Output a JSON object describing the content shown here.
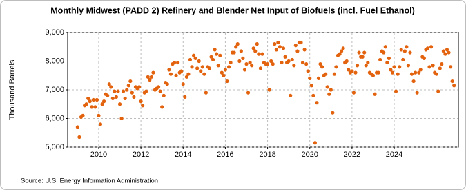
{
  "chart_data": {
    "type": "scatter",
    "title": "Monthly Midwest (PADD 2) Refinery and Blender Net Input of Biofuels (incl. Fuel Ethanol)",
    "y_label": "Thousand Barrels",
    "source": "Source: U.S. Energy Information Administration",
    "color": "#e2620e",
    "grid": true,
    "xlim": [
      2008.53,
      2027.04
    ],
    "xticks": [
      2010,
      2012,
      2014,
      2016,
      2018,
      2020,
      2022,
      2024
    ],
    "ylim": [
      5000,
      9000
    ],
    "yticks": [
      {
        "value": 5000,
        "label": "5,000"
      },
      {
        "value": 6000,
        "label": "6,000"
      },
      {
        "value": 7000,
        "label": "7,000"
      },
      {
        "value": 8000,
        "label": "8,000"
      },
      {
        "value": 9000,
        "label": "9,000"
      }
    ],
    "x": [
      2009,
      2009.083,
      2009.167,
      2009.25,
      2009.333,
      2009.417,
      2009.5,
      2009.583,
      2009.667,
      2009.75,
      2009.833,
      2009.917,
      2010,
      2010.083,
      2010.167,
      2010.25,
      2010.333,
      2010.417,
      2010.5,
      2010.583,
      2010.667,
      2010.75,
      2010.833,
      2010.917,
      2011,
      2011.083,
      2011.167,
      2011.25,
      2011.333,
      2011.417,
      2011.5,
      2011.583,
      2011.667,
      2011.75,
      2011.833,
      2011.917,
      2012,
      2012.083,
      2012.167,
      2012.25,
      2012.333,
      2012.417,
      2012.5,
      2012.583,
      2012.667,
      2012.75,
      2012.833,
      2012.917,
      2013,
      2013.083,
      2013.167,
      2013.25,
      2013.333,
      2013.417,
      2013.5,
      2013.583,
      2013.667,
      2013.75,
      2013.833,
      2013.917,
      2014,
      2014.083,
      2014.167,
      2014.25,
      2014.333,
      2014.417,
      2014.5,
      2014.583,
      2014.667,
      2014.75,
      2014.833,
      2014.917,
      2015,
      2015.083,
      2015.167,
      2015.25,
      2015.333,
      2015.417,
      2015.5,
      2015.583,
      2015.667,
      2015.75,
      2015.833,
      2015.917,
      2016,
      2016.083,
      2016.167,
      2016.25,
      2016.333,
      2016.417,
      2016.5,
      2016.583,
      2016.667,
      2016.75,
      2016.833,
      2016.917,
      2017,
      2017.083,
      2017.167,
      2017.25,
      2017.333,
      2017.417,
      2017.5,
      2017.583,
      2017.667,
      2017.75,
      2017.833,
      2017.917,
      2018,
      2018.083,
      2018.167,
      2018.25,
      2018.333,
      2018.417,
      2018.5,
      2018.583,
      2018.667,
      2018.75,
      2018.833,
      2018.917,
      2019,
      2019.083,
      2019.167,
      2019.25,
      2019.333,
      2019.417,
      2019.5,
      2019.583,
      2019.667,
      2019.75,
      2019.833,
      2019.917,
      2020,
      2020.083,
      2020.167,
      2020.25,
      2020.333,
      2020.417,
      2020.5,
      2020.583,
      2020.667,
      2020.75,
      2020.833,
      2020.917,
      2021,
      2021.083,
      2021.167,
      2021.25,
      2021.333,
      2021.417,
      2021.5,
      2021.583,
      2021.667,
      2021.75,
      2021.833,
      2021.917,
      2022,
      2022.083,
      2022.167,
      2022.25,
      2022.333,
      2022.417,
      2022.5,
      2022.583,
      2022.667,
      2022.75,
      2022.833,
      2022.917,
      2023,
      2023.083,
      2023.167,
      2023.25,
      2023.333,
      2023.417,
      2023.5,
      2023.583,
      2023.667,
      2023.75,
      2023.833,
      2023.917,
      2024,
      2024.083,
      2024.167,
      2024.25,
      2024.333,
      2024.417,
      2024.5,
      2024.583,
      2024.667,
      2024.75,
      2024.833,
      2024.917,
      2025,
      2025.083,
      2025.167,
      2025.25,
      2025.333,
      2025.417,
      2025.5,
      2025.583,
      2025.667,
      2025.75,
      2025.833,
      2025.917,
      2026,
      2026.083,
      2026.167,
      2026.25,
      2026.333,
      2026.417,
      2026.5,
      2026.583,
      2026.667,
      2026.75,
      2026.833
    ],
    "values": [
      5700,
      5350,
      6050,
      6100,
      6450,
      6500,
      6700,
      6600,
      6400,
      6650,
      6400,
      6650,
      6100,
      5800,
      6500,
      6600,
      6850,
      6800,
      7200,
      7100,
      6700,
      6950,
      6750,
      6950,
      6500,
      6000,
      6950,
      6700,
      7000,
      7150,
      7300,
      6900,
      6750,
      7100,
      7050,
      7100,
      6600,
      6450,
      6900,
      6950,
      7450,
      7350,
      7450,
      7600,
      7000,
      7050,
      7100,
      6950,
      6400,
      6800,
      7250,
      7200,
      7700,
      7550,
      7900,
      7950,
      7500,
      7950,
      7600,
      7650,
      7200,
      6750,
      7450,
      7550,
      8050,
      7800,
      8200,
      8100,
      7750,
      8000,
      7650,
      7800,
      7550,
      6900,
      7800,
      7750,
      8150,
      8050,
      8400,
      8250,
      7850,
      8200,
      7600,
      7500,
      7700,
      7300,
      7800,
      7950,
      8300,
      8300,
      8500,
      8600,
      8000,
      8350,
      8100,
      7700,
      7900,
      6900,
      7950,
      7850,
      8450,
      8350,
      8600,
      8250,
      7750,
      8250,
      7950,
      7900,
      7900,
      7000,
      8000,
      7900,
      8600,
      8400,
      8650,
      8500,
      7950,
      8450,
      8150,
      7950,
      8000,
      6800,
      8050,
      7850,
      8550,
      8350,
      8650,
      8650,
      7950,
      8400,
      7900,
      7650,
      7400,
      7150,
      6800,
      5150,
      6550,
      7400,
      7900,
      7800,
      7500,
      7550,
      7100,
      6850,
      7000,
      6200,
      7550,
      7800,
      8200,
      8250,
      8350,
      8450,
      7950,
      8000,
      7700,
      7600,
      7650,
      6900,
      7600,
      7850,
      8300,
      8150,
      8150,
      8300,
      7850,
      7950,
      7600,
      7550,
      7500,
      6850,
      7600,
      7600,
      8050,
      8350,
      8300,
      8500,
      7950,
      8100,
      7700,
      7600,
      7800,
      6950,
      7550,
      7800,
      8400,
      8050,
      8350,
      8500,
      7850,
      8300,
      7550,
      7300,
      7600,
      6900,
      7600,
      7700,
      8150,
      8100,
      8400,
      8450,
      7800,
      8500,
      7850,
      7600,
      7550,
      6950,
      7750,
      7900,
      8350,
      8250,
      8400,
      8300,
      7800,
      7300,
      7150
    ]
  }
}
